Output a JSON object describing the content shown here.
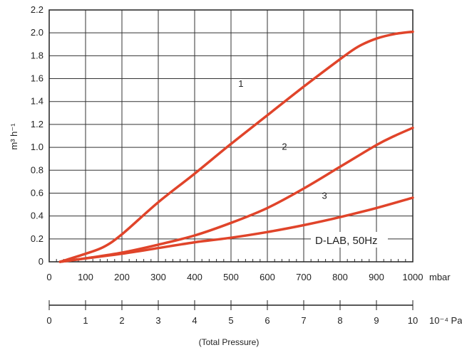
{
  "chart_data": {
    "type": "line",
    "ylabel": "m³ h⁻¹",
    "xlabel_unit": "mbar",
    "secondary_axis": {
      "unit": "10⁻⁴ Pa",
      "ticks": [
        "0",
        "1",
        "2",
        "3",
        "4",
        "5",
        "6",
        "7",
        "8",
        "9",
        "10"
      ],
      "caption": "(Total Pressure)"
    },
    "x_ticks": [
      "0",
      "100",
      "200",
      "300",
      "400",
      "500",
      "600",
      "700",
      "800",
      "900",
      "1000"
    ],
    "y_ticks": [
      "0",
      "0.2",
      "0.4",
      "0.6",
      "0.8",
      "1.0",
      "1.2",
      "1.4",
      "1.6",
      "1.8",
      "2.0",
      "2.2"
    ],
    "xlim": [
      0,
      1000
    ],
    "ylim": [
      0,
      2.2
    ],
    "grid": true,
    "annotation": "D-LAB, 50Hz",
    "line_color": "#e0442a",
    "series": [
      {
        "label": "1",
        "x": [
          30,
          100,
          150,
          200,
          300,
          400,
          500,
          600,
          700,
          800,
          850,
          900,
          950,
          1000
        ],
        "y": [
          0.0,
          0.07,
          0.13,
          0.24,
          0.52,
          0.77,
          1.03,
          1.28,
          1.53,
          1.77,
          1.88,
          1.95,
          1.99,
          2.01
        ]
      },
      {
        "label": "2",
        "x": [
          30,
          100,
          200,
          300,
          400,
          500,
          600,
          700,
          800,
          900,
          950,
          1000
        ],
        "y": [
          0.0,
          0.03,
          0.08,
          0.15,
          0.23,
          0.34,
          0.47,
          0.64,
          0.83,
          1.02,
          1.1,
          1.17
        ]
      },
      {
        "label": "3",
        "x": [
          30,
          100,
          200,
          300,
          400,
          500,
          600,
          700,
          800,
          900,
          1000
        ],
        "y": [
          0.0,
          0.03,
          0.07,
          0.12,
          0.17,
          0.21,
          0.26,
          0.32,
          0.39,
          0.47,
          0.56
        ]
      }
    ]
  }
}
